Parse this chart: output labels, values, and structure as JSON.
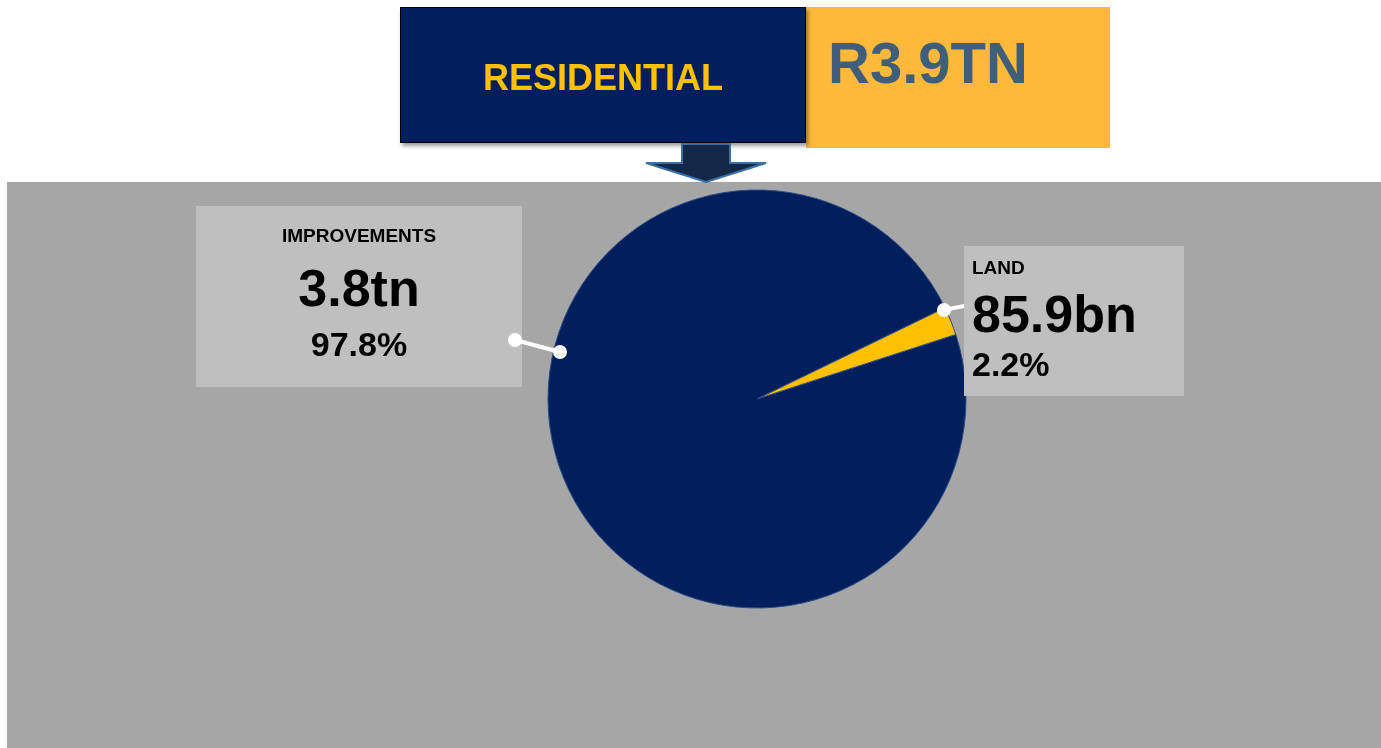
{
  "chart_data": {
    "type": "pie",
    "title": "RESIDENTIAL",
    "subtitle": "R3.9TN",
    "categories": [
      "IMPROVEMENTS",
      "LAND"
    ],
    "values": [
      97.8,
      2.2
    ],
    "colors": [
      "#001f5c",
      "#ffc000"
    ],
    "value_labels": [
      "97.8%",
      "2.2%"
    ],
    "annotations": [
      "3.8tn",
      "85.9bn"
    ],
    "legend": false
  }
}
